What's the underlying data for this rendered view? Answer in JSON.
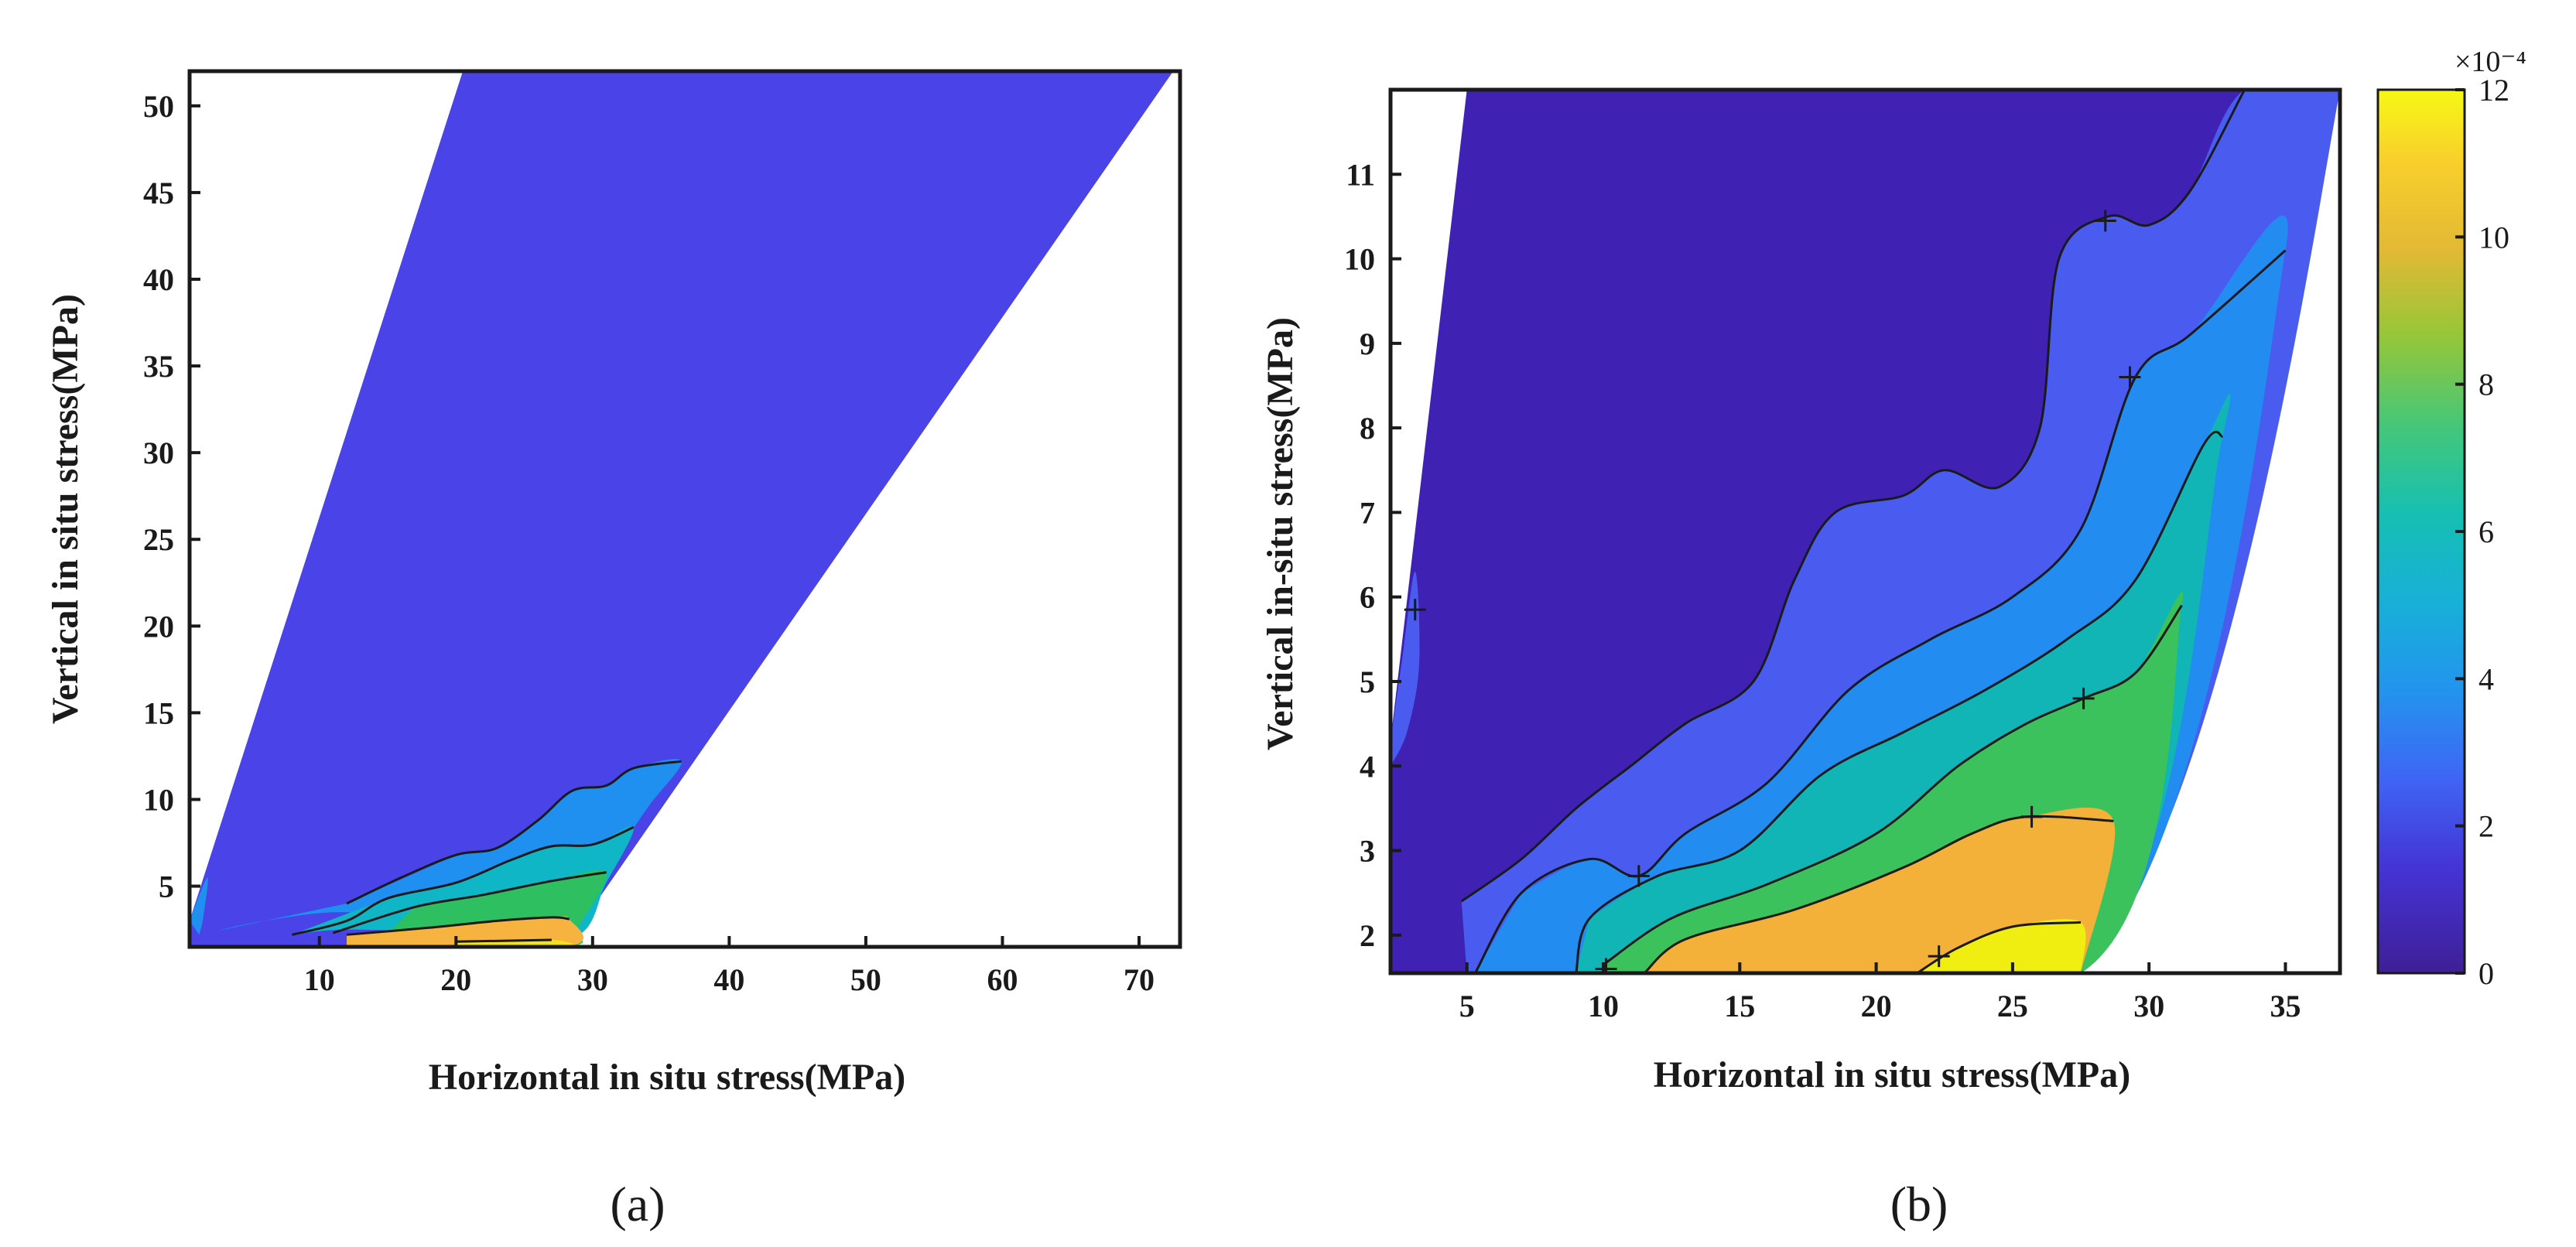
{
  "chart_data": [
    {
      "panel": "(a)",
      "type": "contour",
      "xlabel": "Horizontal in situ stress(MPa)",
      "ylabel": "Vertical in situ stress(MPa)",
      "xlim": [
        0.5,
        73
      ],
      "ylim": [
        1.5,
        52
      ],
      "xticks": [
        10,
        20,
        30,
        40,
        50,
        60,
        70
      ],
      "yticks": [
        5,
        10,
        15,
        20,
        25,
        30,
        35,
        40,
        45,
        50
      ],
      "domain": [
        [
          0.5,
          1.5
        ],
        [
          28,
          1.5
        ],
        [
          72.5,
          52
        ],
        [
          20.5,
          52
        ],
        [
          0.5,
          3
        ]
      ],
      "base_color": "#4a43e8",
      "regions": [
        {
          "level": "2e-4",
          "color": "#1f8ff0",
          "polygon": [
            [
              20,
              6.8
            ],
            [
              23,
              7.2
            ],
            [
              26,
              8.8
            ],
            [
              28.5,
              10.5
            ],
            [
              31,
              10.8
            ],
            [
              33,
              11.8
            ],
            [
              36.5,
              12.2
            ],
            [
              34,
              9.5
            ],
            [
              31,
              6
            ],
            [
              28,
              2.5
            ],
            [
              20,
              2.8
            ],
            [
              12,
              3.5
            ],
            [
              6,
              3
            ],
            [
              3,
              2.5
            ],
            [
              12,
              4
            ]
          ]
        },
        {
          "level": "4e-4",
          "color": "#0fb6c6",
          "polygon": [
            [
              15,
              4.3
            ],
            [
              20,
              5.2
            ],
            [
              24,
              6.5
            ],
            [
              27,
              7.3
            ],
            [
              30,
              7.4
            ],
            [
              33,
              8.4
            ],
            [
              31,
              5.2
            ],
            [
              28.5,
              2
            ],
            [
              20,
              2.3
            ],
            [
              12,
              2.5
            ],
            [
              8,
              2.2
            ]
          ]
        },
        {
          "level": "6e-4",
          "color": "#2ec060",
          "polygon": [
            [
              17,
              3.8
            ],
            [
              22,
              4.5
            ],
            [
              27,
              5.3
            ],
            [
              31,
              5.8
            ],
            [
              29,
              2.7
            ],
            [
              28,
              1.5
            ],
            [
              14,
              1.5
            ]
          ]
        },
        {
          "level": "8e-4",
          "color": "#f6b340",
          "polygon": [
            [
              12,
              2.2
            ],
            [
              18,
              2.6
            ],
            [
              23,
              3
            ],
            [
              27,
              3.2
            ],
            [
              28.3,
              3.1
            ],
            [
              28,
              1.5
            ],
            [
              12,
              1.5
            ]
          ]
        },
        {
          "level": "10e-4",
          "color": "#f2e21a",
          "polygon": [
            [
              20,
              1.8
            ],
            [
              27,
              1.9
            ],
            [
              28,
              1.5
            ],
            [
              20,
              1.5
            ]
          ]
        },
        {
          "level": "edge",
          "color": "#1f8ff0",
          "polygon": [
            [
              0.5,
              3
            ],
            [
              1.8,
              5.5
            ],
            [
              1.5,
              3.2
            ],
            [
              1.2,
              2.2
            ]
          ]
        }
      ],
      "contour_lines": [
        [
          [
            12,
            4
          ],
          [
            16,
            5.5
          ],
          [
            20,
            6.8
          ],
          [
            23,
            7.2
          ],
          [
            26,
            8.8
          ],
          [
            28.5,
            10.5
          ],
          [
            31,
            10.8
          ],
          [
            33,
            11.8
          ],
          [
            36.5,
            12.2
          ]
        ],
        [
          [
            8,
            2.2
          ],
          [
            12,
            3
          ],
          [
            15,
            4.3
          ],
          [
            20,
            5.2
          ],
          [
            24,
            6.5
          ],
          [
            27,
            7.3
          ],
          [
            30,
            7.4
          ],
          [
            33,
            8.4
          ]
        ],
        [
          [
            11,
            2.3
          ],
          [
            17,
            3.8
          ],
          [
            22,
            4.5
          ],
          [
            27,
            5.3
          ],
          [
            31,
            5.8
          ]
        ],
        [
          [
            12,
            2.2
          ],
          [
            18,
            2.6
          ],
          [
            23,
            3
          ],
          [
            27,
            3.2
          ],
          [
            28.3,
            3.1
          ]
        ],
        [
          [
            20,
            1.8
          ],
          [
            27,
            1.9
          ]
        ]
      ]
    },
    {
      "panel": "(b)",
      "type": "contour",
      "xlabel": "Horizontal in situ stress(MPa)",
      "ylabel": "Vertical in-situ stress(MPa)",
      "xlim": [
        2.2,
        37
      ],
      "ylim": [
        1.55,
        12
      ],
      "xticks": [
        5,
        10,
        15,
        20,
        25,
        30,
        35
      ],
      "yticks": [
        2,
        3,
        4,
        5,
        6,
        7,
        8,
        9,
        10,
        11
      ],
      "domain": [
        [
          2.2,
          1.55
        ],
        [
          27.5,
          1.55
        ],
        [
          37,
          12
        ],
        [
          5,
          12
        ],
        [
          2.2,
          4.3
        ]
      ],
      "base_color": "#3f22b3",
      "colorbar": {
        "min": 0,
        "max": 12,
        "ticks": [
          0,
          2,
          4,
          6,
          8,
          10,
          12
        ],
        "exponent": "×10⁻⁴"
      },
      "regions": [
        {
          "level": "1e-4",
          "color": "#4a5cf0",
          "polygon": [
            [
              4.8,
              2.4
            ],
            [
              7,
              2.9
            ],
            [
              9,
              3.5
            ],
            [
              11,
              4
            ],
            [
              13,
              4.5
            ],
            [
              15.5,
              5
            ],
            [
              17,
              6.2
            ],
            [
              18.5,
              7
            ],
            [
              21,
              7.2
            ],
            [
              22.5,
              7.5
            ],
            [
              24.5,
              7.3
            ],
            [
              26,
              8
            ],
            [
              26.7,
              10
            ],
            [
              28.5,
              10.5
            ],
            [
              30,
              10.4
            ],
            [
              31.5,
              10.8
            ],
            [
              33.5,
              12
            ],
            [
              37,
              12
            ],
            [
              27.5,
              1.55
            ],
            [
              5,
              1.55
            ]
          ]
        },
        {
          "level": "2e-4",
          "color": "#238cf0",
          "polygon": [
            [
              7,
              2.5
            ],
            [
              9.5,
              2.9
            ],
            [
              11.3,
              2.7
            ],
            [
              13,
              3.2
            ],
            [
              16,
              3.8
            ],
            [
              19,
              4.9
            ],
            [
              22,
              5.5
            ],
            [
              25,
              6
            ],
            [
              27.5,
              6.8
            ],
            [
              29.5,
              8.6
            ],
            [
              31.5,
              9.1
            ],
            [
              35,
              10.1
            ],
            [
              27.5,
              1.55
            ],
            [
              5.3,
              1.55
            ]
          ]
        },
        {
          "level": "4e-4",
          "color": "#11b5b5",
          "polygon": [
            [
              9.5,
              2.2
            ],
            [
              12,
              2.7
            ],
            [
              15,
              3
            ],
            [
              18,
              3.9
            ],
            [
              21,
              4.4
            ],
            [
              24,
              4.9
            ],
            [
              27,
              5.5
            ],
            [
              29.5,
              6.2
            ],
            [
              32,
              7.8
            ],
            [
              32.7,
              7.9
            ],
            [
              27.5,
              1.55
            ],
            [
              9,
              1.55
            ]
          ]
        },
        {
          "level": "6e-4",
          "color": "#3cc25c",
          "polygon": [
            [
              10,
              1.65
            ],
            [
              12.5,
              2.2
            ],
            [
              16,
              2.6
            ],
            [
              20,
              3.2
            ],
            [
              23,
              4
            ],
            [
              25.5,
              4.5
            ],
            [
              27.6,
              4.8
            ],
            [
              29.5,
              5.1
            ],
            [
              31.2,
              5.9
            ],
            [
              27.5,
              1.55
            ],
            [
              10,
              1.55
            ]
          ]
        },
        {
          "level": "8e-4",
          "color": "#f4b13a",
          "polygon": [
            [
              11.5,
              1.55
            ],
            [
              13,
              1.95
            ],
            [
              17,
              2.3
            ],
            [
              21,
              2.8
            ],
            [
              23.5,
              3.2
            ],
            [
              25.5,
              3.4
            ],
            [
              28.7,
              3.35
            ],
            [
              27.5,
              1.55
            ]
          ]
        },
        {
          "level": "10e-4",
          "color": "#f0ed10",
          "polygon": [
            [
              21.5,
              1.55
            ],
            [
              23,
              1.85
            ],
            [
              25,
              2.1
            ],
            [
              27.5,
              2.15
            ],
            [
              27.5,
              1.55
            ]
          ]
        },
        {
          "level": "edge",
          "color": "#4a5cf0",
          "polygon": [
            [
              2.2,
              4.3
            ],
            [
              2.6,
              5.2
            ],
            [
              3.1,
              6.3
            ],
            [
              3.25,
              5.2
            ],
            [
              2.8,
              4.4
            ],
            [
              2.2,
              4
            ]
          ]
        }
      ],
      "contour_lines": [
        [
          [
            4.8,
            2.4
          ],
          [
            7,
            2.9
          ],
          [
            9,
            3.5
          ],
          [
            11,
            4
          ],
          [
            13,
            4.5
          ],
          [
            15.5,
            5
          ],
          [
            17,
            6.2
          ],
          [
            18.5,
            7
          ],
          [
            21,
            7.2
          ],
          [
            22.5,
            7.5
          ],
          [
            24.5,
            7.3
          ],
          [
            26,
            8
          ],
          [
            26.7,
            10
          ],
          [
            28.5,
            10.5
          ],
          [
            30,
            10.4
          ],
          [
            31.5,
            10.8
          ],
          [
            33.5,
            12
          ]
        ],
        [
          [
            5.3,
            1.55
          ],
          [
            7,
            2.5
          ],
          [
            9.5,
            2.9
          ],
          [
            11.3,
            2.7
          ],
          [
            13,
            3.2
          ],
          [
            16,
            3.8
          ],
          [
            19,
            4.9
          ],
          [
            22,
            5.5
          ],
          [
            25,
            6
          ],
          [
            27.5,
            6.8
          ],
          [
            29.5,
            8.6
          ],
          [
            31.5,
            9.1
          ],
          [
            35,
            10.1
          ]
        ],
        [
          [
            9,
            1.55
          ],
          [
            9.5,
            2.2
          ],
          [
            12,
            2.7
          ],
          [
            15,
            3
          ],
          [
            18,
            3.9
          ],
          [
            21,
            4.4
          ],
          [
            24,
            4.9
          ],
          [
            27,
            5.5
          ],
          [
            29.5,
            6.2
          ],
          [
            32,
            7.8
          ],
          [
            32.7,
            7.9
          ]
        ],
        [
          [
            10,
            1.65
          ],
          [
            12.5,
            2.2
          ],
          [
            16,
            2.6
          ],
          [
            20,
            3.2
          ],
          [
            23,
            4
          ],
          [
            25.5,
            4.5
          ],
          [
            27.6,
            4.8
          ],
          [
            29.5,
            5.1
          ],
          [
            31.2,
            5.9
          ]
        ],
        [
          [
            11.5,
            1.55
          ],
          [
            13,
            1.95
          ],
          [
            17,
            2.3
          ],
          [
            21,
            2.8
          ],
          [
            23.5,
            3.2
          ],
          [
            25.5,
            3.4
          ],
          [
            28.7,
            3.35
          ]
        ],
        [
          [
            21.5,
            1.55
          ],
          [
            23,
            1.85
          ],
          [
            25,
            2.1
          ],
          [
            27.5,
            2.15
          ]
        ]
      ],
      "markers": [
        [
          3.1,
          5.85
        ],
        [
          28.4,
          10.45
        ],
        [
          29.3,
          8.6
        ],
        [
          27.6,
          4.8
        ],
        [
          25.7,
          3.4
        ],
        [
          11.3,
          2.7
        ],
        [
          22.3,
          1.75
        ],
        [
          10.1,
          1.6
        ]
      ]
    }
  ]
}
